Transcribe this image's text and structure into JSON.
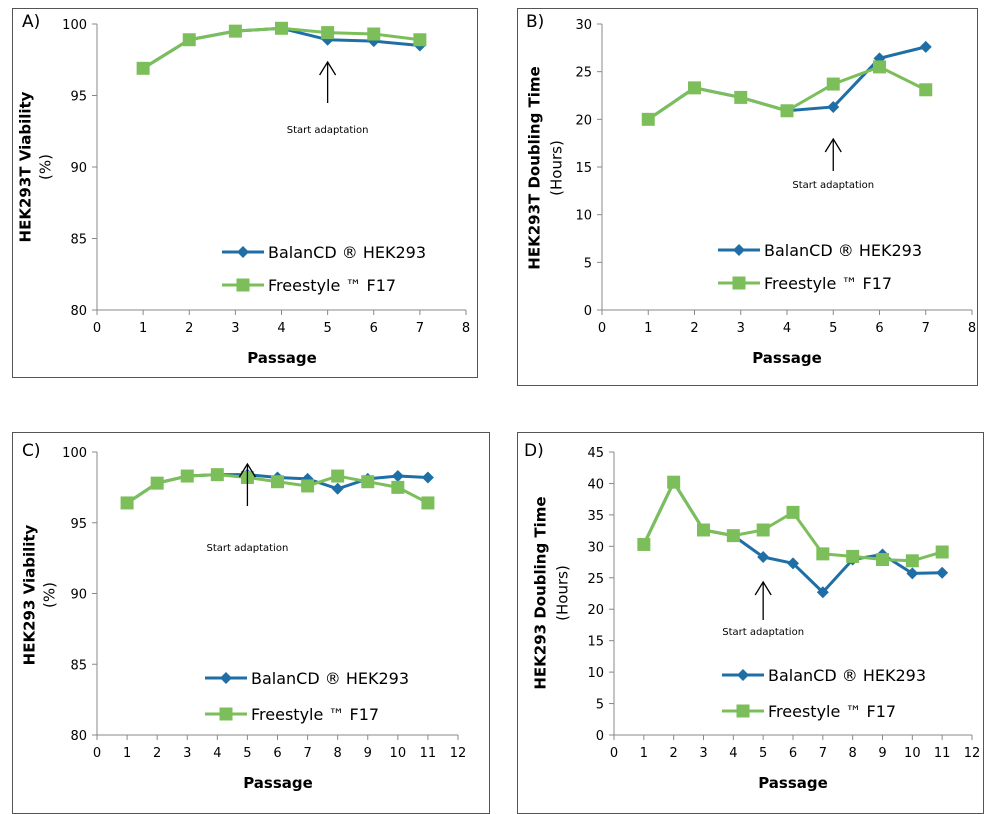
{
  "chart_data": [
    {
      "panel_label": "A)",
      "type": "line",
      "ylabel_bold": "HEK293T Viability",
      "ylabel_unit": "(%)",
      "xlabel": "Passage",
      "xlim": [
        0,
        8
      ],
      "ylim": [
        80,
        100
      ],
      "xticks": [
        "0",
        "1",
        "2",
        "3",
        "4",
        "5",
        "6",
        "7",
        "8"
      ],
      "yticks": [
        "80",
        "85",
        "90",
        "95",
        "100"
      ],
      "annotation": {
        "text": "Start adaptation",
        "x": 5
      },
      "series": [
        {
          "name": "BalanCD ® HEK293",
          "color": "#1f6fa6",
          "marker": "diamond",
          "points": [
            [
              1,
              96.9
            ],
            [
              2,
              98.9
            ],
            [
              3,
              99.5
            ],
            [
              4,
              99.7
            ],
            [
              5,
              98.9
            ],
            [
              6,
              98.8
            ],
            [
              7,
              98.5
            ]
          ]
        },
        {
          "name": "Freestyle ™ F17",
          "color": "#7cbf5a",
          "marker": "square",
          "points": [
            [
              1,
              96.9
            ],
            [
              2,
              98.9
            ],
            [
              3,
              99.5
            ],
            [
              4,
              99.7
            ],
            [
              5,
              99.4
            ],
            [
              6,
              99.3
            ],
            [
              7,
              98.9
            ]
          ]
        }
      ]
    },
    {
      "panel_label": "B)",
      "type": "line",
      "ylabel_bold": "HEK293T Doubling Time",
      "ylabel_unit": "(Hours)",
      "xlabel": "Passage",
      "xlim": [
        0,
        8
      ],
      "ylim": [
        0,
        30
      ],
      "xticks": [
        "0",
        "1",
        "2",
        "3",
        "4",
        "5",
        "6",
        "7",
        "8"
      ],
      "yticks": [
        "0",
        "5",
        "10",
        "15",
        "20",
        "25",
        "30"
      ],
      "annotation": {
        "text": "Start adaptation",
        "x": 5
      },
      "series": [
        {
          "name": "BalanCD ® HEK293",
          "color": "#1f6fa6",
          "marker": "diamond",
          "points": [
            [
              1,
              20.0
            ],
            [
              2,
              23.3
            ],
            [
              3,
              22.3
            ],
            [
              4,
              20.9
            ],
            [
              5,
              21.3
            ],
            [
              6,
              26.4
            ],
            [
              7,
              27.6
            ]
          ]
        },
        {
          "name": "Freestyle ™ F17",
          "color": "#7cbf5a",
          "marker": "square",
          "points": [
            [
              1,
              20.0
            ],
            [
              2,
              23.3
            ],
            [
              3,
              22.3
            ],
            [
              4,
              20.9
            ],
            [
              5,
              23.7
            ],
            [
              6,
              25.5
            ],
            [
              7,
              23.1
            ]
          ]
        }
      ]
    },
    {
      "panel_label": "C)",
      "type": "line",
      "ylabel_bold": "HEK293 Viability",
      "ylabel_unit": "(%)",
      "xlabel": "Passage",
      "xlim": [
        0,
        12
      ],
      "ylim": [
        80,
        100
      ],
      "xticks": [
        "0",
        "1",
        "2",
        "3",
        "4",
        "5",
        "6",
        "7",
        "8",
        "9",
        "10",
        "11",
        "12"
      ],
      "yticks": [
        "80",
        "85",
        "90",
        "95",
        "100"
      ],
      "annotation": {
        "text": "Start adaptation",
        "x": 5
      },
      "series": [
        {
          "name": "BalanCD ® HEK293",
          "color": "#1f6fa6",
          "marker": "diamond",
          "points": [
            [
              1,
              96.4
            ],
            [
              2,
              97.8
            ],
            [
              3,
              98.3
            ],
            [
              4,
              98.4
            ],
            [
              5,
              98.4
            ],
            [
              6,
              98.2
            ],
            [
              7,
              98.1
            ],
            [
              8,
              97.4
            ],
            [
              9,
              98.1
            ],
            [
              10,
              98.3
            ],
            [
              11,
              98.2
            ]
          ]
        },
        {
          "name": "Freestyle ™ F17",
          "color": "#7cbf5a",
          "marker": "square",
          "points": [
            [
              1,
              96.4
            ],
            [
              2,
              97.8
            ],
            [
              3,
              98.3
            ],
            [
              4,
              98.4
            ],
            [
              5,
              98.2
            ],
            [
              6,
              97.9
            ],
            [
              7,
              97.6
            ],
            [
              8,
              98.3
            ],
            [
              9,
              97.9
            ],
            [
              10,
              97.5
            ],
            [
              11,
              96.4
            ]
          ]
        }
      ]
    },
    {
      "panel_label": "D)",
      "type": "line",
      "ylabel_bold": "HEK293 Doubling Time",
      "ylabel_unit": "(Hours)",
      "xlabel": "Passage",
      "xlim": [
        0,
        12
      ],
      "ylim": [
        0,
        45
      ],
      "xticks": [
        "0",
        "1",
        "2",
        "3",
        "4",
        "5",
        "6",
        "7",
        "8",
        "9",
        "10",
        "11",
        "12"
      ],
      "yticks": [
        "0",
        "5",
        "10",
        "15",
        "20",
        "25",
        "30",
        "35",
        "40",
        "45"
      ],
      "annotation": {
        "text": "Start adaptation",
        "x": 5
      },
      "series": [
        {
          "name": "BalanCD ® HEK293",
          "color": "#1f6fa6",
          "marker": "diamond",
          "points": [
            [
              1,
              30.3
            ],
            [
              2,
              40.2
            ],
            [
              3,
              32.6
            ],
            [
              4,
              31.7
            ],
            [
              5,
              28.3
            ],
            [
              6,
              27.3
            ],
            [
              7,
              22.7
            ],
            [
              8,
              27.9
            ],
            [
              9,
              28.7
            ],
            [
              10,
              25.7
            ],
            [
              11,
              25.8
            ]
          ]
        },
        {
          "name": "Freestyle ™ F17",
          "color": "#7cbf5a",
          "marker": "square",
          "points": [
            [
              1,
              30.3
            ],
            [
              2,
              40.2
            ],
            [
              3,
              32.6
            ],
            [
              4,
              31.7
            ],
            [
              5,
              32.6
            ],
            [
              6,
              35.4
            ],
            [
              7,
              28.8
            ],
            [
              8,
              28.4
            ],
            [
              9,
              27.9
            ],
            [
              10,
              27.7
            ],
            [
              11,
              29.1
            ]
          ]
        }
      ]
    }
  ]
}
